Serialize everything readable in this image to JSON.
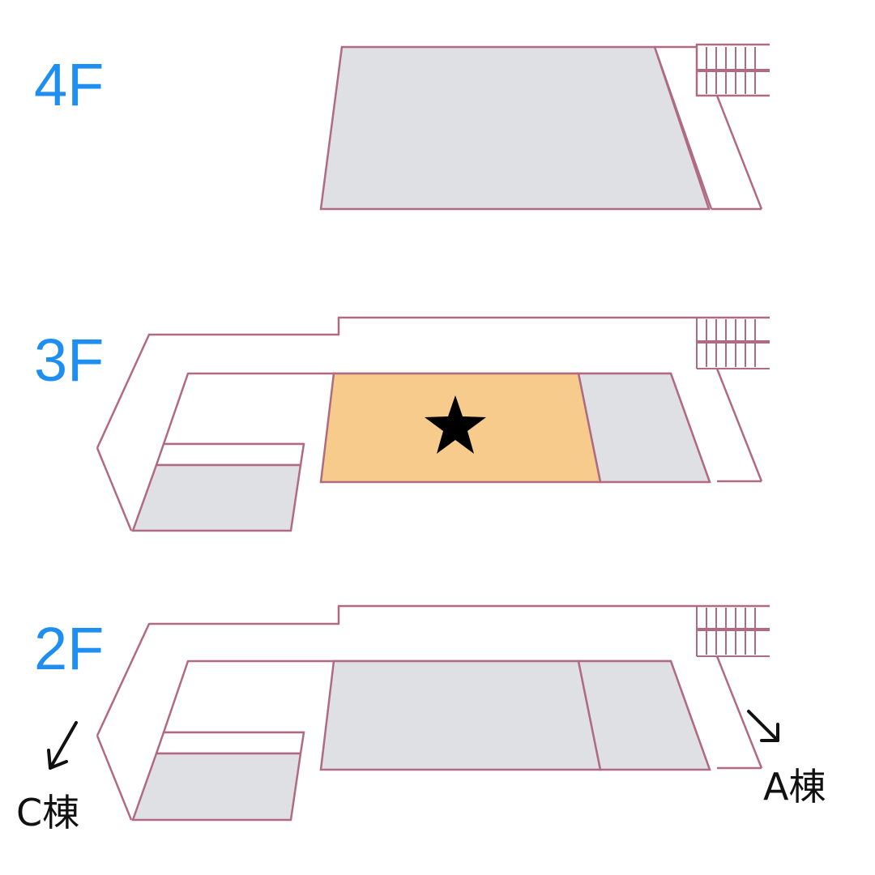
{
  "floors": [
    {
      "label": "4F"
    },
    {
      "label": "3F",
      "highlighted_room": "star-marker"
    },
    {
      "label": "2F"
    }
  ],
  "wings": {
    "left": "C棟",
    "right": "A棟"
  },
  "colors": {
    "floor_label": "#1e8ef0",
    "outline": "#b06a82",
    "room_fill": "#dfe0e3",
    "highlight_fill": "#f7cb8b",
    "star": "#000000"
  }
}
